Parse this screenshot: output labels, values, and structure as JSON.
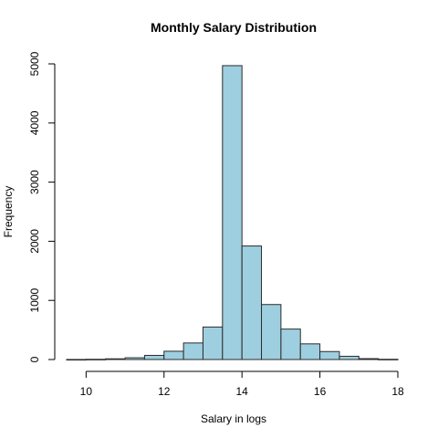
{
  "chart_data": {
    "type": "bar",
    "title": "Monthly Salary Distribution",
    "xlabel": "Salary in logs",
    "ylabel": "Frequency",
    "bin_width": 0.5,
    "bins": [
      {
        "start": 9.5,
        "end": 10.0,
        "count": 1
      },
      {
        "start": 10.0,
        "end": 10.5,
        "count": 4
      },
      {
        "start": 10.5,
        "end": 11.0,
        "count": 12
      },
      {
        "start": 11.0,
        "end": 11.5,
        "count": 30
      },
      {
        "start": 11.5,
        "end": 12.0,
        "count": 70
      },
      {
        "start": 12.0,
        "end": 12.5,
        "count": 140
      },
      {
        "start": 12.5,
        "end": 13.0,
        "count": 280
      },
      {
        "start": 13.0,
        "end": 13.5,
        "count": 550
      },
      {
        "start": 13.5,
        "end": 14.0,
        "count": 4970
      },
      {
        "start": 14.0,
        "end": 14.5,
        "count": 1920
      },
      {
        "start": 14.5,
        "end": 15.0,
        "count": 930
      },
      {
        "start": 15.0,
        "end": 15.5,
        "count": 515
      },
      {
        "start": 15.5,
        "end": 16.0,
        "count": 265
      },
      {
        "start": 16.0,
        "end": 16.5,
        "count": 135
      },
      {
        "start": 16.5,
        "end": 17.0,
        "count": 55
      },
      {
        "start": 17.0,
        "end": 17.5,
        "count": 15
      },
      {
        "start": 17.5,
        "end": 18.0,
        "count": 4
      }
    ],
    "xlim": [
      9.5,
      18
    ],
    "ylim": [
      0,
      5000
    ],
    "x_ticks": [
      10,
      12,
      14,
      16,
      18
    ],
    "y_ticks": [
      0,
      1000,
      2000,
      3000,
      4000,
      5000
    ],
    "bar_fill": "#9ecfe0",
    "bar_stroke": "#2b2b2b",
    "grid": false
  }
}
